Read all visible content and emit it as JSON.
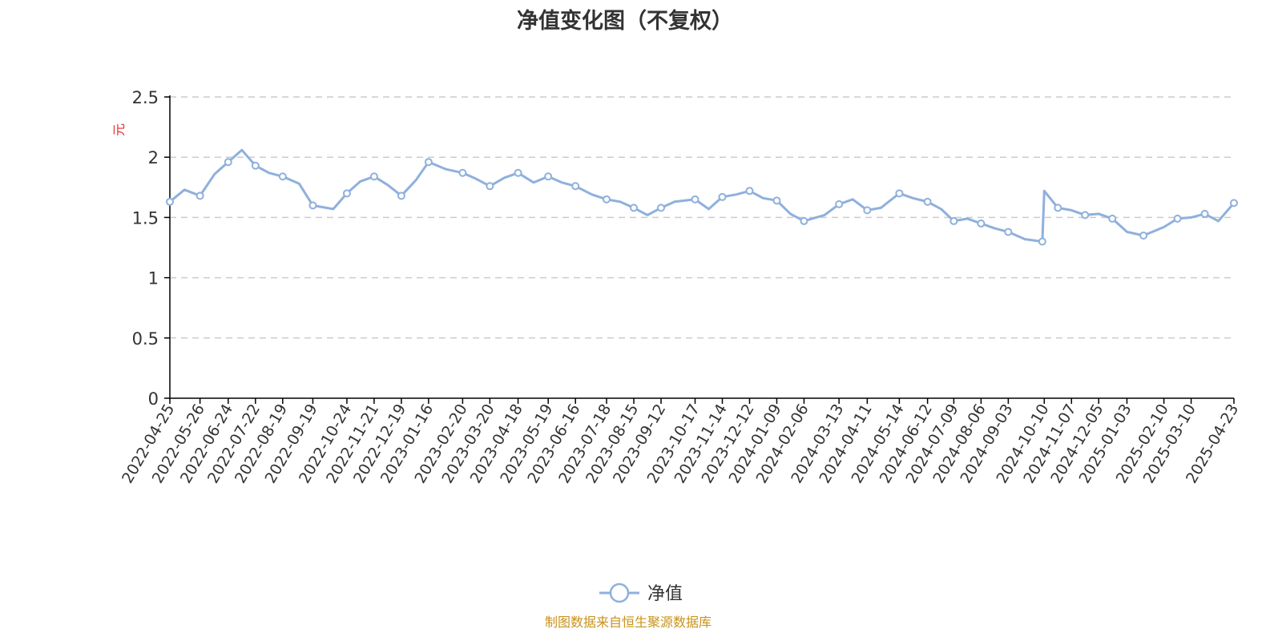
{
  "chart_data": {
    "type": "line",
    "title": "净值变化图（不复权）",
    "ylabel": "元",
    "ylim": [
      0,
      2.5
    ],
    "yticks": [
      "0",
      "0.5",
      "1",
      "1.5",
      "2",
      "2.5"
    ],
    "grid": true,
    "legend_position": "bottom",
    "x_tick_labels": [
      "2022-04-25",
      "2022-05-26",
      "2022-06-24",
      "2022-07-22",
      "2022-08-19",
      "2022-09-19",
      "2022-10-24",
      "2022-11-21",
      "2022-12-19",
      "2023-01-16",
      "2023-02-20",
      "2023-03-20",
      "2023-04-18",
      "2023-05-19",
      "2023-06-16",
      "2023-07-18",
      "2023-08-15",
      "2023-09-12",
      "2023-10-17",
      "2023-11-14",
      "2023-12-12",
      "2024-01-09",
      "2024-02-06",
      "2024-03-13",
      "2024-04-11",
      "2024-05-14",
      "2024-06-12",
      "2024-07-09",
      "2024-08-06",
      "2024-09-03",
      "2024-10-10",
      "2024-11-07",
      "2024-12-05",
      "2025-01-03",
      "2025-02-10",
      "2025-03-10",
      "2025-04-23"
    ],
    "series": [
      {
        "name": "净值",
        "color": "#8fb0dd",
        "x": [
          "2022-04-25",
          "2022-05-10",
          "2022-05-26",
          "2022-06-10",
          "2022-06-24",
          "2022-07-08",
          "2022-07-22",
          "2022-08-05",
          "2022-08-19",
          "2022-09-05",
          "2022-09-19",
          "2022-10-10",
          "2022-10-24",
          "2022-11-07",
          "2022-11-21",
          "2022-12-05",
          "2022-12-19",
          "2023-01-03",
          "2023-01-16",
          "2023-02-03",
          "2023-02-20",
          "2023-03-06",
          "2023-03-20",
          "2023-04-04",
          "2023-04-18",
          "2023-05-04",
          "2023-05-19",
          "2023-06-02",
          "2023-06-16",
          "2023-07-03",
          "2023-07-18",
          "2023-08-01",
          "2023-08-15",
          "2023-08-29",
          "2023-09-12",
          "2023-09-26",
          "2023-10-17",
          "2023-10-31",
          "2023-11-14",
          "2023-11-28",
          "2023-12-12",
          "2023-12-26",
          "2024-01-09",
          "2024-01-23",
          "2024-02-06",
          "2024-02-27",
          "2024-03-13",
          "2024-03-27",
          "2024-04-11",
          "2024-04-25",
          "2024-05-14",
          "2024-05-28",
          "2024-06-12",
          "2024-06-26",
          "2024-07-09",
          "2024-07-23",
          "2024-08-06",
          "2024-08-20",
          "2024-09-03",
          "2024-09-20",
          "2024-10-08",
          "2024-10-10",
          "2024-10-24",
          "2024-11-07",
          "2024-11-21",
          "2024-12-05",
          "2024-12-19",
          "2025-01-03",
          "2025-01-20",
          "2025-02-10",
          "2025-02-24",
          "2025-03-10",
          "2025-03-24",
          "2025-04-07",
          "2025-04-23"
        ],
        "y": [
          1.63,
          1.73,
          1.68,
          1.86,
          1.96,
          2.06,
          1.93,
          1.87,
          1.84,
          1.78,
          1.6,
          1.57,
          1.7,
          1.8,
          1.84,
          1.77,
          1.68,
          1.81,
          1.96,
          1.9,
          1.87,
          1.82,
          1.76,
          1.83,
          1.87,
          1.79,
          1.84,
          1.79,
          1.76,
          1.69,
          1.65,
          1.63,
          1.58,
          1.52,
          1.58,
          1.63,
          1.65,
          1.57,
          1.67,
          1.69,
          1.72,
          1.66,
          1.64,
          1.53,
          1.47,
          1.52,
          1.61,
          1.65,
          1.56,
          1.58,
          1.7,
          1.66,
          1.63,
          1.57,
          1.47,
          1.49,
          1.45,
          1.41,
          1.38,
          1.32,
          1.3,
          1.72,
          1.58,
          1.56,
          1.52,
          1.53,
          1.49,
          1.38,
          1.35,
          1.42,
          1.49,
          1.5,
          1.53,
          1.47,
          1.62
        ]
      }
    ]
  },
  "source_note": "制图数据来自恒生聚源数据库",
  "colors": {
    "line": "#8fb0dd",
    "ylabel": "#e62b2b",
    "source": "#c8921b",
    "axis": "#000000",
    "grid": "#cccccc"
  }
}
